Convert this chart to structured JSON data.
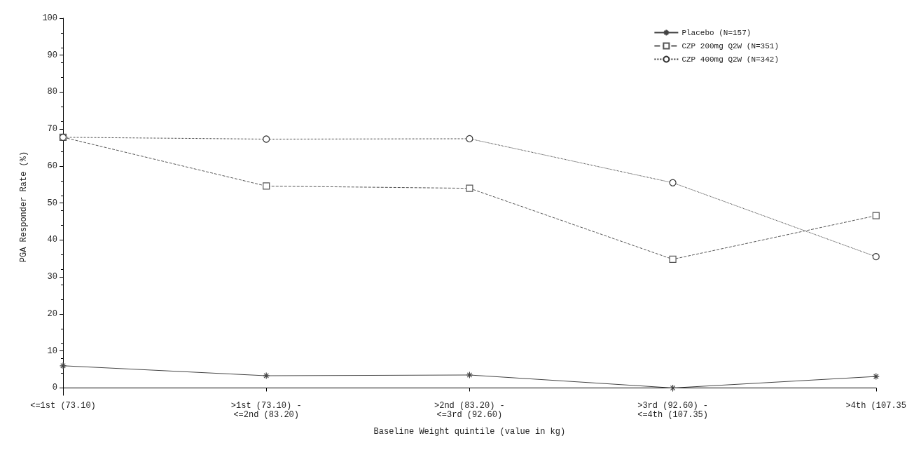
{
  "chart_data": {
    "type": "line",
    "xlabel": "Baseline Weight quintile (value in kg)",
    "ylabel": "PGA Responder Rate (%)",
    "categories": [
      "<=1st (73.10)",
      ">1st (73.10) -\n<=2nd (83.20)",
      ">2nd (83.20) -\n<=3rd (92.60)",
      ">3rd (92.60) -\n<=4th (107.35)",
      ">4th (107.35"
    ],
    "ylim": [
      -2,
      100
    ],
    "yticks": [
      0,
      10,
      20,
      30,
      40,
      50,
      60,
      70,
      80,
      90,
      100
    ],
    "grid": false,
    "legend": "top right",
    "series": [
      {
        "name": "Placebo (N=157)",
        "color": "#444444",
        "marker": "cross",
        "line_style": "solid",
        "values": [
          6.0,
          3.3,
          3.5,
          0,
          3.1
        ]
      },
      {
        "name": "CZP 200mg Q2W (N=351)",
        "color": "#555555",
        "marker": "square",
        "line_style": "dashed",
        "values": [
          67.8,
          54.6,
          54.0,
          34.8,
          46.6
        ]
      },
      {
        "name": "CZP 400mg Q2W (N=342)",
        "color": "#333333",
        "marker": "circle",
        "line_style": "dotted",
        "values": [
          67.8,
          67.3,
          67.4,
          55.5,
          35.5
        ]
      }
    ]
  }
}
